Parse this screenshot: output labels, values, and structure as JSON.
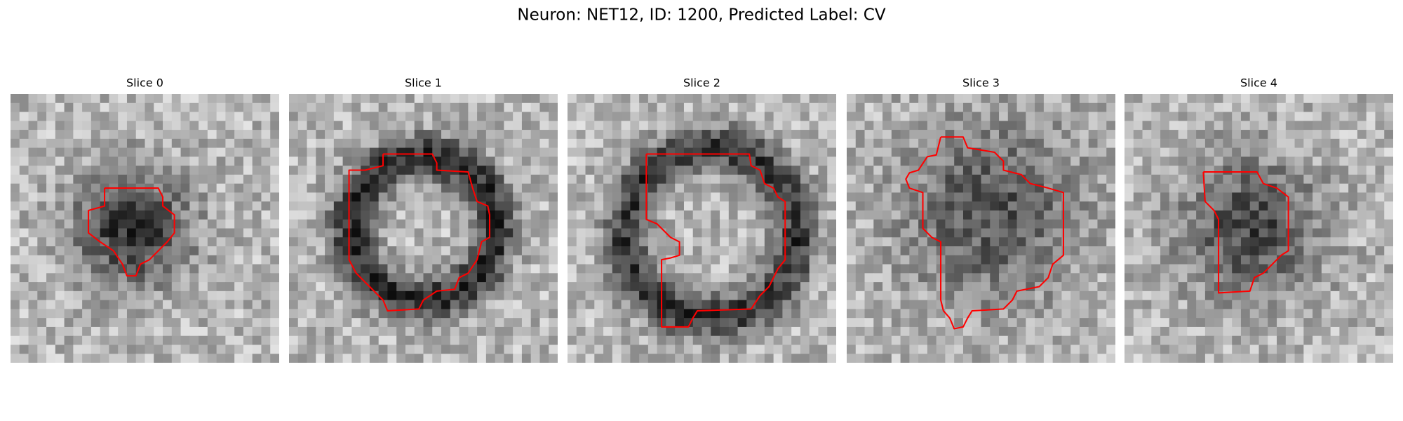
{
  "header": {
    "title": "Neuron: NET12, ID: 1200, Predicted Label: CV"
  },
  "panels": [
    {
      "title": "Slice 0"
    },
    {
      "title": "Slice 1"
    },
    {
      "title": "Slice 2"
    },
    {
      "title": "Slice 3"
    },
    {
      "title": "Slice 4"
    }
  ]
}
